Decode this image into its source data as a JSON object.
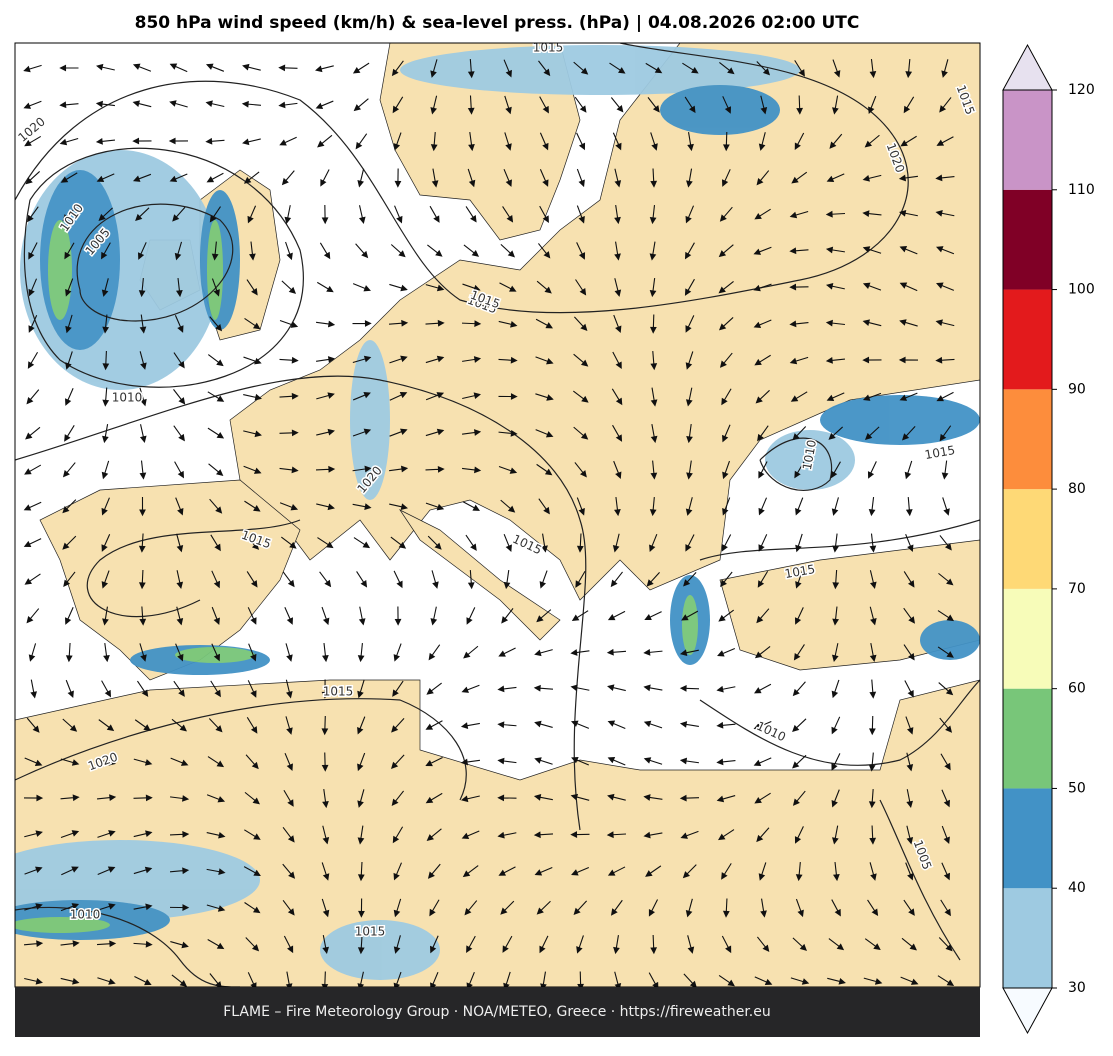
{
  "title": "850 hPa wind speed (km/h) & sea-level press. (hPa)  |  04.08.2026 02:00 UTC",
  "footer": "FLAME – Fire Meteorology Group · NOA/METEO, Greece · https://fireweather.eu",
  "colorbar": {
    "ticks": [
      30,
      40,
      50,
      60,
      70,
      80,
      90,
      100,
      110,
      120
    ],
    "colors": [
      "#9ecae1",
      "#4292c6",
      "#78c679",
      "#f7fcb9",
      "#fed976",
      "#fd8d3c",
      "#e31a1c",
      "#800026",
      "#c994c7"
    ],
    "under_color": "#f7fbff",
    "over_color": "#e7e1ef"
  },
  "contour_labels": [
    1015,
    1020,
    1020,
    1010,
    1005,
    1010,
    1015,
    1015,
    1020,
    1015,
    1015,
    1010,
    1015,
    1015,
    1015,
    1010,
    1005,
    1020,
    1015,
    1010,
    1015
  ]
}
